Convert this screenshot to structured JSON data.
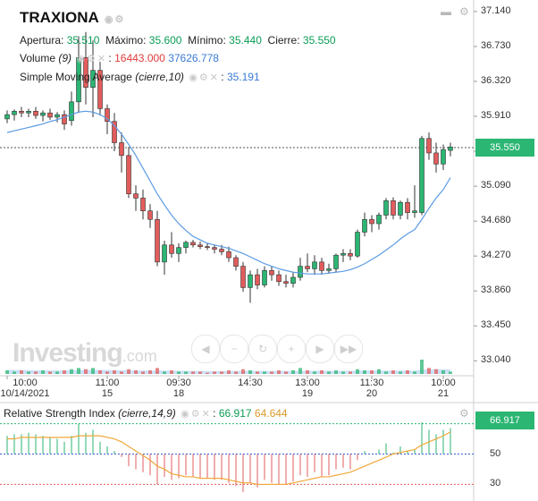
{
  "header": {
    "symbol": "TRAXIONA",
    "apertura_label": "Apertura:",
    "apertura": "35.510",
    "maximo_label": "Máximo:",
    "maximo": "35.600",
    "minimo_label": "Mínimo:",
    "minimo": "35.440",
    "cierre_label": "Cierre:",
    "cierre": "35.550",
    "volume_label": "Volume",
    "volume_param": "(9)",
    "volume_value": "16443.000",
    "volume_ma": "37626.778",
    "sma_label": "Simple Moving Average",
    "sma_param": "(cierre,10)",
    "sma_value": "35.191",
    "rsi_label": "Relative Strength Index",
    "rsi_param": "(cierre,14,9)",
    "rsi_value": "66.917",
    "rsi_signal": "64.644"
  },
  "watermark": {
    "brand": "Investing",
    "suffix": ".com"
  },
  "price_tag": "35.550",
  "rsi_tag": "66.917",
  "colors": {
    "up": "#2bb673",
    "down": "#e25c5c",
    "sma": "#5b9be3",
    "rsi_line": "#f0a93b",
    "volume": "#9fc8ef"
  },
  "chart_data": [
    {
      "type": "candlestick",
      "title": "TRAXIONA",
      "y_ticks": [
        "37.140",
        "36.730",
        "36.320",
        "35.910",
        "35.500",
        "35.090",
        "34.680",
        "34.270",
        "33.860",
        "33.450",
        "33.040"
      ],
      "ylim": [
        32.98,
        37.16
      ],
      "x_ticks": [
        {
          "i": 0,
          "top": "10:00",
          "bottom": "10/14/2021"
        },
        {
          "i": 14,
          "top": "11:00",
          "bottom": "15"
        },
        {
          "i": 24,
          "top": "09:30",
          "bottom": "18"
        },
        {
          "i": 34,
          "top": "14:30",
          "bottom": ""
        },
        {
          "i": 42,
          "top": "13:00",
          "bottom": "19"
        },
        {
          "i": 51,
          "top": "11:30",
          "bottom": "20"
        },
        {
          "i": 61,
          "top": "10:00",
          "bottom": "21"
        }
      ],
      "candles": [
        {
          "o": 35.88,
          "h": 35.98,
          "l": 35.83,
          "c": 35.93
        },
        {
          "o": 35.93,
          "h": 35.99,
          "l": 35.86,
          "c": 35.97
        },
        {
          "o": 35.97,
          "h": 36.02,
          "l": 35.9,
          "c": 35.95
        },
        {
          "o": 35.95,
          "h": 36.0,
          "l": 35.9,
          "c": 35.97
        },
        {
          "o": 35.97,
          "h": 36.02,
          "l": 35.88,
          "c": 35.92
        },
        {
          "o": 35.92,
          "h": 35.98,
          "l": 35.85,
          "c": 35.95
        },
        {
          "o": 35.95,
          "h": 36.0,
          "l": 35.87,
          "c": 35.9
        },
        {
          "o": 35.9,
          "h": 35.96,
          "l": 35.84,
          "c": 35.93
        },
        {
          "o": 35.93,
          "h": 35.98,
          "l": 35.75,
          "c": 35.82
        },
        {
          "o": 35.86,
          "h": 36.2,
          "l": 35.8,
          "c": 36.08
        },
        {
          "o": 36.08,
          "h": 36.85,
          "l": 35.95,
          "c": 36.6
        },
        {
          "o": 36.6,
          "h": 36.9,
          "l": 36.05,
          "c": 36.25
        },
        {
          "o": 36.25,
          "h": 36.8,
          "l": 35.9,
          "c": 36.45
        },
        {
          "o": 36.45,
          "h": 36.55,
          "l": 35.92,
          "c": 36.0
        },
        {
          "o": 36.0,
          "h": 36.05,
          "l": 35.7,
          "c": 35.85
        },
        {
          "o": 35.85,
          "h": 35.95,
          "l": 35.5,
          "c": 35.6
        },
        {
          "o": 35.6,
          "h": 35.72,
          "l": 35.25,
          "c": 35.45
        },
        {
          "o": 35.45,
          "h": 35.55,
          "l": 34.95,
          "c": 35.0
        },
        {
          "o": 35.0,
          "h": 35.1,
          "l": 34.8,
          "c": 34.95
        },
        {
          "o": 34.95,
          "h": 35.05,
          "l": 34.7,
          "c": 34.8
        },
        {
          "o": 34.8,
          "h": 34.88,
          "l": 34.6,
          "c": 34.7
        },
        {
          "o": 34.7,
          "h": 34.8,
          "l": 34.15,
          "c": 34.2
        },
        {
          "o": 34.2,
          "h": 34.45,
          "l": 34.05,
          "c": 34.4
        },
        {
          "o": 34.4,
          "h": 34.55,
          "l": 34.25,
          "c": 34.3
        },
        {
          "o": 34.3,
          "h": 34.42,
          "l": 34.2,
          "c": 34.37
        },
        {
          "o": 34.37,
          "h": 34.45,
          "l": 34.3,
          "c": 34.43
        },
        {
          "o": 34.43,
          "h": 34.46,
          "l": 34.37,
          "c": 34.4
        },
        {
          "o": 34.4,
          "h": 34.44,
          "l": 34.35,
          "c": 34.38
        },
        {
          "o": 34.38,
          "h": 34.42,
          "l": 34.34,
          "c": 34.37
        },
        {
          "o": 34.37,
          "h": 34.4,
          "l": 34.3,
          "c": 34.35
        },
        {
          "o": 34.35,
          "h": 34.4,
          "l": 34.28,
          "c": 34.32
        },
        {
          "o": 34.32,
          "h": 34.38,
          "l": 34.2,
          "c": 34.25
        },
        {
          "o": 34.25,
          "h": 34.28,
          "l": 34.1,
          "c": 34.15
        },
        {
          "o": 34.15,
          "h": 34.2,
          "l": 33.85,
          "c": 33.9
        },
        {
          "o": 33.9,
          "h": 34.1,
          "l": 33.72,
          "c": 34.05
        },
        {
          "o": 34.05,
          "h": 34.12,
          "l": 33.88,
          "c": 33.93
        },
        {
          "o": 33.93,
          "h": 34.15,
          "l": 33.9,
          "c": 34.1
        },
        {
          "o": 34.1,
          "h": 34.15,
          "l": 33.98,
          "c": 34.05
        },
        {
          "o": 34.05,
          "h": 34.1,
          "l": 33.92,
          "c": 33.97
        },
        {
          "o": 33.97,
          "h": 34.05,
          "l": 33.9,
          "c": 33.95
        },
        {
          "o": 33.95,
          "h": 34.08,
          "l": 33.9,
          "c": 34.02
        },
        {
          "o": 34.02,
          "h": 34.25,
          "l": 33.98,
          "c": 34.15
        },
        {
          "o": 34.15,
          "h": 34.3,
          "l": 34.08,
          "c": 34.12
        },
        {
          "o": 34.12,
          "h": 34.28,
          "l": 34.05,
          "c": 34.2
        },
        {
          "o": 34.2,
          "h": 34.25,
          "l": 34.05,
          "c": 34.1
        },
        {
          "o": 34.1,
          "h": 34.18,
          "l": 34.06,
          "c": 34.12
        },
        {
          "o": 34.12,
          "h": 34.3,
          "l": 34.08,
          "c": 34.28
        },
        {
          "o": 34.28,
          "h": 34.35,
          "l": 34.2,
          "c": 34.3
        },
        {
          "o": 34.3,
          "h": 34.35,
          "l": 34.22,
          "c": 34.27
        },
        {
          "o": 34.27,
          "h": 34.58,
          "l": 34.25,
          "c": 34.55
        },
        {
          "o": 34.55,
          "h": 34.78,
          "l": 34.5,
          "c": 34.7
        },
        {
          "o": 34.7,
          "h": 34.75,
          "l": 34.55,
          "c": 34.65
        },
        {
          "o": 34.65,
          "h": 34.78,
          "l": 34.58,
          "c": 34.75
        },
        {
          "o": 34.75,
          "h": 34.95,
          "l": 34.7,
          "c": 34.92
        },
        {
          "o": 34.92,
          "h": 34.96,
          "l": 34.7,
          "c": 34.75
        },
        {
          "o": 34.75,
          "h": 34.92,
          "l": 34.7,
          "c": 34.9
        },
        {
          "o": 34.9,
          "h": 34.95,
          "l": 34.7,
          "c": 34.78
        },
        {
          "o": 34.78,
          "h": 35.1,
          "l": 34.72,
          "c": 34.8
        },
        {
          "o": 34.78,
          "h": 35.68,
          "l": 34.75,
          "c": 35.65
        },
        {
          "o": 35.65,
          "h": 35.72,
          "l": 35.4,
          "c": 35.48
        },
        {
          "o": 35.48,
          "h": 35.6,
          "l": 35.25,
          "c": 35.35
        },
        {
          "o": 35.35,
          "h": 35.58,
          "l": 35.28,
          "c": 35.52
        },
        {
          "o": 35.51,
          "h": 35.6,
          "l": 35.44,
          "c": 35.55
        }
      ],
      "sma": [
        35.72,
        35.74,
        35.76,
        35.78,
        35.8,
        35.82,
        35.85,
        35.87,
        35.9,
        35.93,
        35.96,
        35.97,
        35.96,
        35.93,
        35.88,
        35.8,
        35.7,
        35.58,
        35.45,
        35.3,
        35.15,
        35.0,
        34.87,
        34.75,
        34.65,
        34.57,
        34.5,
        34.46,
        34.42,
        34.4,
        34.38,
        34.36,
        34.33,
        34.3,
        34.26,
        34.22,
        34.18,
        34.15,
        34.12,
        34.1,
        34.08,
        34.07,
        34.06,
        34.06,
        34.06,
        34.07,
        34.08,
        34.09,
        34.11,
        34.14,
        34.18,
        34.23,
        34.28,
        34.34,
        34.4,
        34.47,
        34.53,
        34.58,
        34.7,
        34.83,
        34.95,
        35.05,
        35.19
      ],
      "volume": [
        3,
        2,
        3,
        2,
        2,
        3,
        2,
        2,
        3,
        4,
        5,
        4,
        5,
        3,
        2,
        3,
        2,
        4,
        3,
        2,
        3,
        5,
        2,
        3,
        2,
        2,
        2,
        2,
        1,
        2,
        2,
        3,
        2,
        4,
        3,
        2,
        2,
        2,
        3,
        2,
        3,
        5,
        3,
        2,
        3,
        2,
        3,
        2,
        2,
        4,
        3,
        3,
        4,
        2,
        3,
        2,
        3,
        2,
        12,
        5,
        4,
        3,
        2
      ],
      "volume_ma": [
        3.5,
        3.4,
        3.3,
        3.2,
        3.1,
        3.0,
        2.9,
        2.9,
        3.0,
        3.1,
        3.3,
        3.4,
        3.5,
        3.4,
        3.3,
        3.2,
        3.1,
        3.0,
        2.9,
        2.8,
        2.8,
        2.9,
        2.8,
        2.7,
        2.6,
        2.5,
        2.5,
        2.4,
        2.3,
        2.3,
        2.3,
        2.4,
        2.5,
        2.6,
        2.6,
        2.5,
        2.5,
        2.4,
        2.4,
        2.4,
        2.5,
        2.6,
        2.7,
        2.7,
        2.7,
        2.6,
        2.6,
        2.6,
        2.6,
        2.7,
        2.8,
        2.8,
        2.9,
        2.8,
        2.8,
        2.8,
        2.8,
        2.7,
        3.6,
        3.8,
        3.9,
        3.9,
        3.8
      ]
    },
    {
      "type": "line",
      "title": "Relative Strength Index",
      "y_ticks": [
        "70",
        "50",
        "30"
      ],
      "ylim": [
        22,
        78
      ],
      "levels": [
        70,
        50,
        30
      ],
      "rsi": [
        62,
        63,
        63,
        64,
        63,
        62,
        61,
        60,
        58,
        62,
        70,
        64,
        66,
        58,
        55,
        52,
        48,
        42,
        40,
        38,
        36,
        30,
        35,
        33,
        34,
        36,
        35,
        34,
        34,
        33,
        33,
        31,
        29,
        25,
        31,
        28,
        33,
        31,
        30,
        30,
        32,
        36,
        35,
        38,
        35,
        36,
        40,
        41,
        40,
        46,
        52,
        50,
        53,
        57,
        51,
        55,
        52,
        53,
        71,
        66,
        63,
        66,
        67
      ],
      "signal": [
        60,
        60,
        61,
        61,
        61,
        61,
        61,
        61,
        61,
        61,
        62,
        62,
        62,
        62,
        61,
        60,
        58,
        55,
        52,
        49,
        46,
        42,
        40,
        37,
        36,
        35,
        35,
        34,
        34,
        34,
        34,
        33,
        32,
        31,
        31,
        30,
        30,
        30,
        30,
        30,
        31,
        32,
        33,
        34,
        35,
        35,
        36,
        37,
        38,
        40,
        42,
        44,
        46,
        48,
        50,
        51,
        52,
        53,
        56,
        58,
        60,
        62,
        64.6
      ]
    }
  ]
}
